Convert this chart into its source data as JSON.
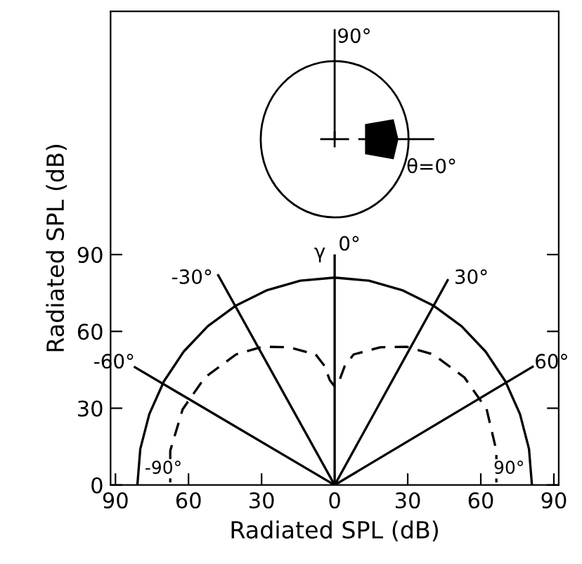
{
  "chart_data": {
    "type": "line",
    "xlabel": "Radiated SPL (dB)",
    "ylabel": "Radiated SPL (dB)",
    "xlim": [
      -92,
      92
    ],
    "ylim": [
      0,
      185
    ],
    "xticks": [
      {
        "value": -90,
        "label": "90"
      },
      {
        "value": -60,
        "label": "60"
      },
      {
        "value": -30,
        "label": "30"
      },
      0,
      30,
      60,
      90
    ],
    "yticks": [
      0,
      30,
      60,
      90
    ],
    "grid": false,
    "legend": false,
    "marker": "none",
    "series": [
      {
        "color": "#000000",
        "line_style": "solid",
        "x": [
          -81,
          -79.8,
          -76.1,
          -70.1,
          -62.0,
          -52.1,
          -40.5,
          -27.7,
          -14.1,
          0,
          14.1,
          27.7,
          40.5,
          52.1,
          62.0,
          70.1,
          76.1,
          79.8,
          81
        ],
        "values": [
          0,
          14.1,
          27.7,
          40.5,
          52.1,
          62.0,
          70.1,
          76.1,
          79.8,
          81,
          79.8,
          76.1,
          70.1,
          62.0,
          52.1,
          40.5,
          27.7,
          14.1,
          0
        ]
      },
      {
        "color": "#000000",
        "line_style": "dashed",
        "x": [
          -67.5,
          -67.5,
          -62.4,
          -53.3,
          -40.5,
          -29.6,
          -18.7,
          -7.8,
          -4.2,
          -2,
          0,
          2,
          4.2,
          7.8,
          18.7,
          29.6,
          40.5,
          53.3,
          62.4,
          66.4,
          66.4
        ],
        "values": [
          1,
          13.4,
          29.6,
          42,
          51,
          54,
          53.8,
          51,
          46.6,
          41,
          38.5,
          41,
          46.6,
          51,
          53.8,
          54,
          51,
          42,
          29.6,
          13.4,
          1
        ]
      },
      {
        "color": "#000000",
        "line_style": "solid",
        "x": [
          0,
          -82
        ],
        "values": [
          0,
          46
        ]
      },
      {
        "color": "#000000",
        "line_style": "solid",
        "x": [
          0,
          -47.8
        ],
        "values": [
          0,
          81.9
        ]
      },
      {
        "color": "#000000",
        "line_style": "solid",
        "x": [
          0,
          0
        ],
        "values": [
          0,
          89.6
        ]
      },
      {
        "color": "#000000",
        "line_style": "solid",
        "x": [
          0,
          46.4
        ],
        "values": [
          0,
          80
        ]
      },
      {
        "color": "#000000",
        "line_style": "solid",
        "x": [
          0,
          81.3
        ],
        "values": [
          0,
          46.2
        ]
      }
    ],
    "annotations": [
      {
        "text": "-90°",
        "x": -81,
        "y": 0
      },
      {
        "text": "-60°",
        "x": -76,
        "y": 43
      },
      {
        "text": "-30°",
        "x": -44,
        "y": 76
      },
      "γ",
      {
        "text": "0°",
        "x": 0,
        "y": 88
      },
      {
        "text": "30°",
        "x": 43,
        "y": 76
      },
      {
        "text": "60°",
        "x": 76,
        "y": 43
      },
      {
        "text": "90°",
        "x": 81,
        "y": 0
      },
      "90°",
      "θ=0°"
    ]
  }
}
